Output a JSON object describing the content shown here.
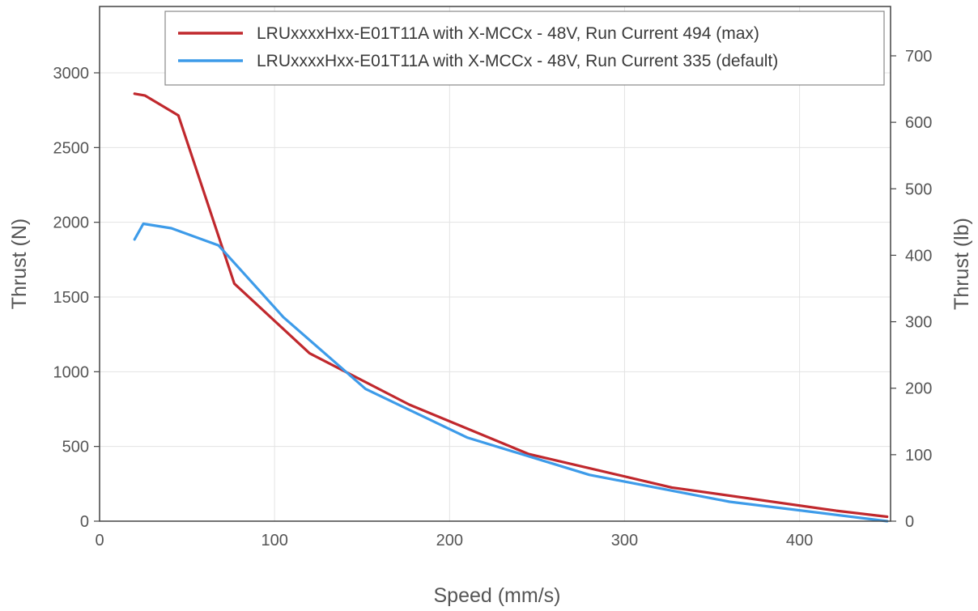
{
  "chart_data": {
    "type": "line",
    "title": "",
    "xlabel": "Speed (mm/s)",
    "ylabel": "Thrust (N)",
    "y2label": "Thrust (lb)",
    "xlim": [
      0,
      452
    ],
    "ylim": [
      0,
      3000
    ],
    "y2lim": [
      0,
      700
    ],
    "xticks": [
      "0",
      "100",
      "200",
      "300",
      "400"
    ],
    "yticks": [
      "0",
      "500",
      "1000",
      "1500",
      "2000",
      "2500",
      "3000"
    ],
    "y2ticks": [
      "0",
      "100",
      "200",
      "300",
      "400",
      "500",
      "600",
      "700"
    ],
    "grid": true,
    "legend_position": "top-right",
    "series": [
      {
        "name": "LRUxxxxHxx-E01T11A with X-MCCx - 48V, Run Current 494 (max)",
        "color": "#c0282d",
        "x": [
          20,
          26,
          45,
          77,
          120,
          177,
          245,
          327,
          421,
          450
        ],
        "y": [
          2860,
          2848,
          2715,
          1590,
          1123,
          780,
          450,
          225,
          70,
          30
        ]
      },
      {
        "name": "LRUxxxxHxx-E01T11A with X-MCCx - 48V, Run Current 335 (default)",
        "color": "#3d9be9",
        "x": [
          20,
          25,
          41,
          68,
          105,
          152,
          210,
          280,
          360,
          450
        ],
        "y": [
          1885,
          1990,
          1960,
          1845,
          1365,
          885,
          560,
          310,
          130,
          0
        ]
      }
    ]
  }
}
